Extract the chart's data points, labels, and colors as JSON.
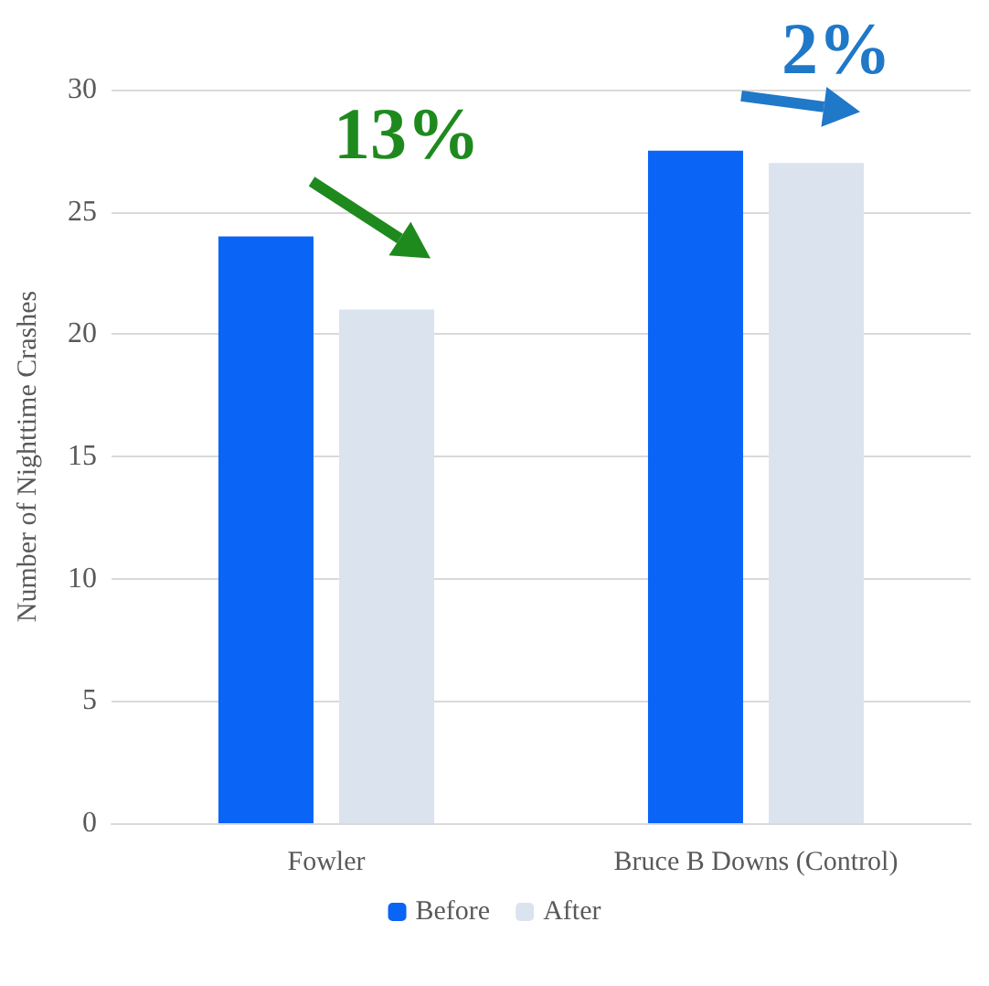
{
  "chart_data": {
    "type": "bar",
    "ylabel": "Number of Nighttime Crashes",
    "categories": [
      "Fowler",
      "Bruce B Downs (Control)"
    ],
    "series": [
      {
        "name": "Before",
        "color": "#0a64f5",
        "values": [
          24,
          27.5
        ]
      },
      {
        "name": "After",
        "color": "#dbe3ee",
        "values": [
          21,
          27
        ]
      }
    ],
    "ylim": [
      0,
      30
    ],
    "yticks": [
      0,
      5,
      10,
      15,
      20,
      25,
      30
    ],
    "grid": "y",
    "legend": "bottom",
    "annotations": [
      "13%",
      "2%"
    ]
  }
}
